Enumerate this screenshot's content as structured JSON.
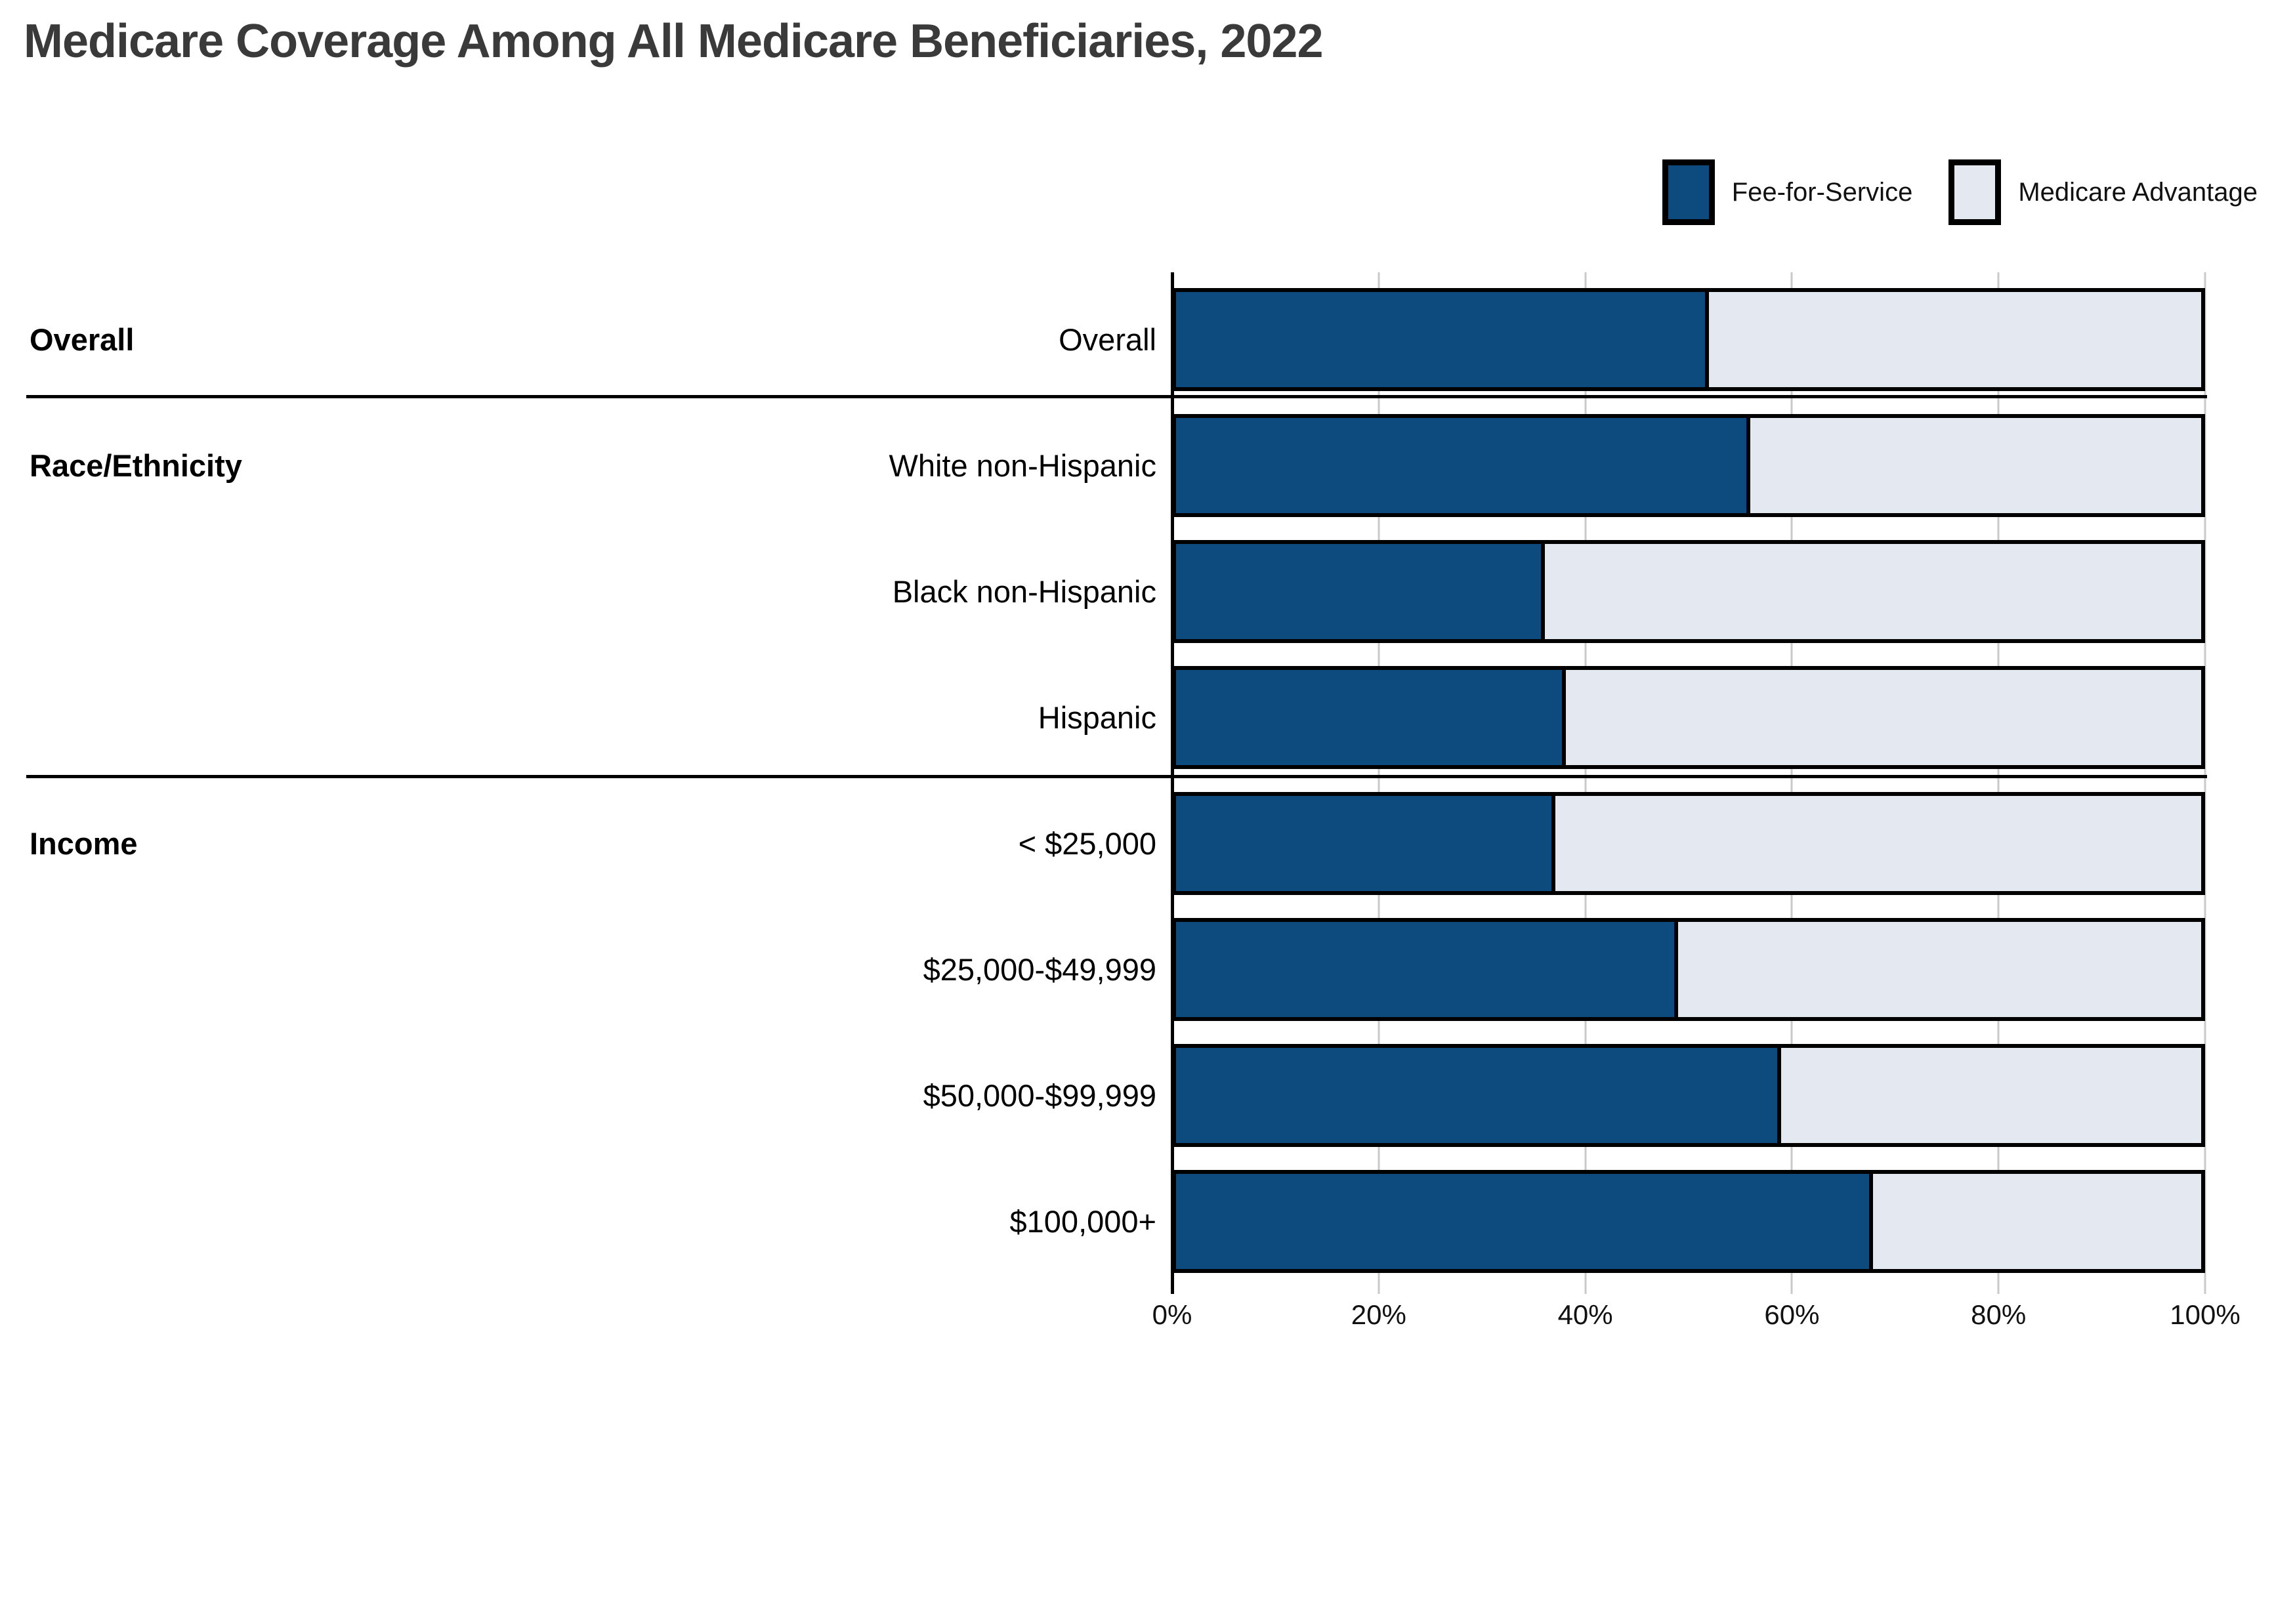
{
  "title": "Medicare Coverage Among All Medicare Beneficiaries, 2022",
  "legend": [
    {
      "label": "Fee-for-Service",
      "color": "#0D4A7D"
    },
    {
      "label": "Medicare Advantage",
      "color": "#E4E8F1"
    }
  ],
  "colors": {
    "fee_for_service": "#0D4A7D",
    "medicare_advantage": "#E4E8F1",
    "bar_border": "#000000",
    "gridline": "#C9C9C9",
    "title_text": "#3A3A3A",
    "label_text": "#111111"
  },
  "x_axis": {
    "ticks": [
      "0%",
      "20%",
      "40%",
      "60%",
      "80%",
      "100%"
    ]
  },
  "sections": [
    {
      "label": "Overall",
      "rows": [
        {
          "label": "Overall",
          "ffs": 52,
          "ma": 48
        }
      ]
    },
    {
      "label": "Race/Ethnicity",
      "rows": [
        {
          "label": "White non-Hispanic",
          "ffs": 56,
          "ma": 44
        },
        {
          "label": "Black non-Hispanic",
          "ffs": 36,
          "ma": 64
        },
        {
          "label": "Hispanic",
          "ffs": 38,
          "ma": 62
        }
      ]
    },
    {
      "label": "Income",
      "rows": [
        {
          "label": "< $25,000",
          "ffs": 37,
          "ma": 63
        },
        {
          "label": "$25,000-$49,999",
          "ffs": 49,
          "ma": 51
        },
        {
          "label": "$50,000-$99,999",
          "ffs": 59,
          "ma": 41
        },
        {
          "label": "$100,000+",
          "ffs": 68,
          "ma": 32
        }
      ]
    }
  ],
  "chart_data": {
    "type": "bar",
    "orientation": "horizontal",
    "stacked": true,
    "title": "Medicare Coverage Among All Medicare Beneficiaries, 2022",
    "categories": [
      "Overall",
      "White non-Hispanic",
      "Black non-Hispanic",
      "Hispanic",
      "< $25,000",
      "$25,000-$49,999",
      "$50,000-$99,999",
      "$100,000+"
    ],
    "category_groups": [
      {
        "label": "Overall",
        "categories": [
          "Overall"
        ]
      },
      {
        "label": "Race/Ethnicity",
        "categories": [
          "White non-Hispanic",
          "Black non-Hispanic",
          "Hispanic"
        ]
      },
      {
        "label": "Income",
        "categories": [
          "< $25,000",
          "$25,000-$49,999",
          "$50,000-$99,999",
          "$100,000+"
        ]
      }
    ],
    "series": [
      {
        "name": "Fee-for-Service",
        "values": [
          52,
          56,
          36,
          38,
          37,
          49,
          59,
          68
        ]
      },
      {
        "name": "Medicare Advantage",
        "values": [
          48,
          44,
          64,
          62,
          63,
          51,
          41,
          32
        ]
      }
    ],
    "value_unit": "%",
    "xlim": [
      0,
      100
    ],
    "x_ticks": [
      "0%",
      "20%",
      "40%",
      "60%",
      "80%",
      "100%"
    ],
    "grid": true,
    "legend_position": "top-right"
  }
}
